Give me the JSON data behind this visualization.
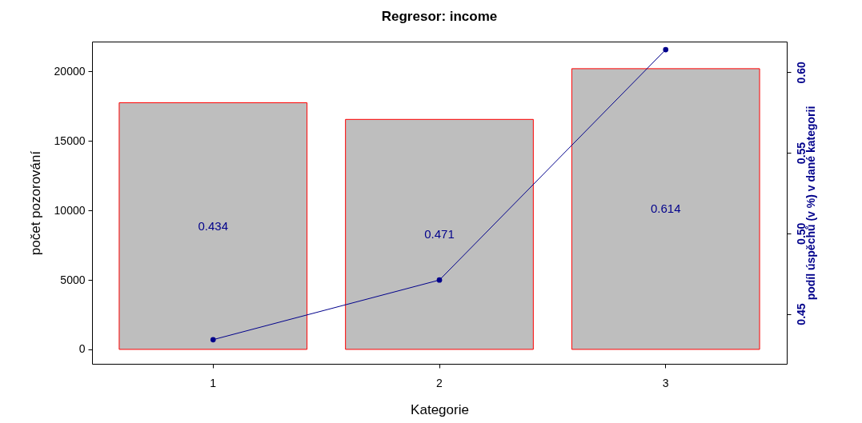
{
  "chart_data": {
    "type": "bar",
    "title": "Regresor:  income",
    "xlabel": "Kategorie",
    "ylabel": "počet pozorování",
    "y2label": "podíl úspěchů (v %) v dané kategorii",
    "categories": [
      "1",
      "2",
      "3"
    ],
    "ylim": [
      -1040,
      22150
    ],
    "yticks": [
      0,
      5000,
      10000,
      15000,
      20000
    ],
    "y2lim": [
      0.419,
      0.619
    ],
    "y2ticks": [
      0.45,
      {
        "value": 0.5,
        "label": "0.50"
      },
      0.55,
      {
        "value": 0.6,
        "label": "0.60"
      }
    ],
    "series": [
      {
        "color": "#bebebe",
        "values": [
          17750,
          16550,
          20200
        ]
      },
      {
        "type": "line",
        "axis": "y2",
        "color": "#00008b",
        "values": [
          0.434,
          0.471,
          0.614
        ]
      }
    ],
    "annotations": [
      "0.434",
      "0.471",
      "0.614"
    ],
    "marker": "circle",
    "grid": false
  }
}
